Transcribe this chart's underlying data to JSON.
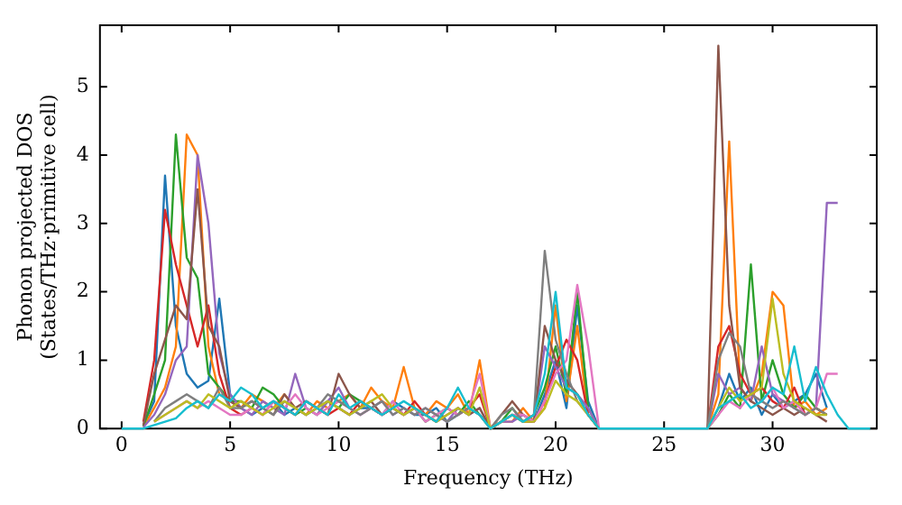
{
  "chart_data": {
    "type": "line",
    "xlabel": "Frequency (THz)",
    "ylabel": "Phonon projected DOS\n(States/THz·primitive cell)",
    "x": [
      0,
      0.5,
      1,
      1.5,
      2,
      2.5,
      3,
      3.5,
      4,
      4.5,
      5,
      5.5,
      6,
      6.5,
      7,
      7.5,
      8,
      8.5,
      9,
      9.5,
      10,
      10.5,
      11,
      11.5,
      12,
      12.5,
      13,
      13.5,
      14,
      14.5,
      15,
      15.5,
      16,
      16.5,
      17,
      17.5,
      18,
      18.5,
      19,
      19.5,
      20,
      20.5,
      21,
      21.5,
      22,
      22.5,
      23,
      23.5,
      24,
      24.5,
      25,
      25.5,
      26,
      26.5,
      27,
      27.5,
      28,
      28.5,
      29,
      29.5,
      30,
      30.5,
      31,
      31.5,
      32,
      32.5,
      33,
      33.5,
      34,
      34.5
    ],
    "series": [
      {
        "color": "#1f77b4",
        "values": [
          null,
          null,
          0.05,
          0.4,
          3.7,
          1.5,
          0.8,
          0.6,
          0.7,
          1.9,
          0.5,
          0.3,
          0.2,
          0.3,
          0.4,
          0.2,
          0.3,
          0.2,
          0.3,
          0.4,
          0.3,
          0.2,
          0.3,
          0.3,
          0.2,
          0.4,
          0.3,
          0.2,
          0.2,
          0.3,
          0.1,
          0.2,
          0.3,
          0.2,
          0,
          0.1,
          0.2,
          0.1,
          0.1,
          0.5,
          1.0,
          0.3,
          1.8,
          0.4,
          0,
          null,
          null,
          null,
          null,
          null,
          null,
          null,
          null,
          null,
          0,
          0.3,
          0.8,
          0.4,
          0.6,
          0.2,
          0.5,
          0.3,
          0.4,
          0.5,
          0.8,
          0.3,
          null,
          null,
          null,
          null
        ]
      },
      {
        "color": "#ff7f0e",
        "values": [
          null,
          null,
          0.02,
          0.3,
          0.6,
          1.2,
          4.3,
          4.0,
          1.2,
          0.5,
          0.4,
          0.3,
          0.5,
          0.4,
          0.3,
          0.5,
          0.3,
          0.2,
          0.4,
          0.3,
          0.4,
          0.5,
          0.3,
          0.6,
          0.4,
          0.3,
          0.9,
          0.3,
          0.2,
          0.4,
          0.3,
          0.5,
          0.2,
          1.0,
          0,
          0.1,
          0.1,
          0.3,
          0.1,
          0.3,
          1.8,
          0.4,
          1.5,
          0.2,
          0,
          null,
          null,
          null,
          null,
          null,
          null,
          null,
          null,
          null,
          0,
          0.5,
          4.2,
          0.6,
          0.4,
          0.8,
          2.0,
          1.8,
          0.3,
          0.4,
          0.2,
          0.3,
          null,
          null,
          null,
          null
        ]
      },
      {
        "color": "#2ca02c",
        "values": [
          null,
          null,
          0.03,
          0.5,
          1.0,
          4.3,
          2.5,
          2.2,
          0.8,
          0.6,
          0.4,
          0.4,
          0.3,
          0.6,
          0.5,
          0.3,
          0.2,
          0.3,
          0.2,
          0.4,
          0.3,
          0.5,
          0.4,
          0.3,
          0.2,
          0.3,
          0.2,
          0.3,
          0.1,
          0.2,
          0.3,
          0.2,
          0.4,
          0.2,
          0,
          0.1,
          0.3,
          0.1,
          0.2,
          0.6,
          1.2,
          0.5,
          2.0,
          0.3,
          0,
          null,
          null,
          null,
          null,
          null,
          null,
          null,
          null,
          null,
          0,
          0.2,
          0.5,
          0.3,
          2.4,
          0.4,
          1.0,
          0.5,
          0.3,
          0.5,
          0.3,
          0.2,
          null,
          null,
          null,
          null
        ]
      },
      {
        "color": "#d62728",
        "values": [
          null,
          null,
          0.1,
          1.0,
          3.2,
          2.4,
          1.8,
          1.2,
          1.8,
          0.8,
          0.3,
          0.2,
          0.3,
          0.2,
          0.4,
          0.3,
          0.2,
          0.4,
          0.3,
          0.2,
          0.3,
          0.2,
          0.4,
          0.3,
          0.2,
          0.3,
          0.2,
          0.4,
          0.2,
          0.1,
          0.3,
          0.2,
          0.3,
          0.5,
          0,
          0.1,
          0.2,
          0.1,
          0.1,
          0.4,
          0.9,
          1.3,
          1.0,
          0.2,
          0,
          null,
          null,
          null,
          null,
          null,
          null,
          null,
          null,
          null,
          0,
          1.2,
          1.5,
          0.8,
          0.5,
          0.6,
          0.4,
          0.3,
          0.6,
          0.2,
          0.3,
          0.2,
          null,
          null,
          null,
          null
        ]
      },
      {
        "color": "#9467bd",
        "values": [
          null,
          null,
          0.02,
          0.2,
          0.5,
          1.0,
          1.2,
          4.0,
          3.0,
          1.1,
          0.5,
          0.3,
          0.2,
          0.4,
          0.3,
          0.2,
          0.8,
          0.3,
          0.2,
          0.4,
          0.6,
          0.3,
          0.2,
          0.3,
          0.4,
          0.2,
          0.3,
          0.2,
          0.3,
          0.2,
          0.1,
          0.3,
          0.2,
          0.3,
          0,
          0.1,
          0.1,
          0.2,
          0.1,
          1.2,
          0.9,
          0.6,
          0.5,
          0.3,
          0,
          null,
          null,
          null,
          null,
          null,
          null,
          null,
          null,
          null,
          0,
          0.8,
          0.5,
          0.6,
          0.4,
          1.2,
          0.5,
          0.4,
          0.3,
          0.2,
          0.3,
          3.3,
          3.3,
          null,
          null,
          null
        ]
      },
      {
        "color": "#8c564b",
        "values": [
          null,
          null,
          0.05,
          0.8,
          1.3,
          1.8,
          1.6,
          3.5,
          1.5,
          1.2,
          0.4,
          0.3,
          0.4,
          0.3,
          0.2,
          0.5,
          0.3,
          0.4,
          0.3,
          0.2,
          0.8,
          0.5,
          0.3,
          0.4,
          0.2,
          0.3,
          0.2,
          0.3,
          0.2,
          0.1,
          0.2,
          0.3,
          0.2,
          0.3,
          0,
          0.2,
          0.4,
          0.2,
          0.1,
          1.5,
          1.0,
          0.7,
          0.5,
          0.2,
          0,
          null,
          null,
          null,
          null,
          null,
          null,
          null,
          null,
          null,
          0,
          5.6,
          1.8,
          0.6,
          0.4,
          0.3,
          0.2,
          0.3,
          0.2,
          0.3,
          0.2,
          0.1,
          null,
          null,
          null,
          null
        ]
      },
      {
        "color": "#e377c2",
        "values": [
          null,
          null,
          null,
          0.1,
          0.2,
          0.3,
          0.4,
          0.3,
          0.4,
          0.3,
          0.2,
          0.2,
          0.3,
          0.2,
          0.4,
          0.3,
          0.5,
          0.3,
          0.2,
          0.3,
          0.4,
          0.3,
          0.2,
          0.3,
          0.2,
          0.4,
          0.2,
          0.3,
          0.1,
          0.2,
          0.3,
          0.2,
          0.3,
          0.8,
          0,
          0.1,
          0.2,
          0.2,
          0.1,
          0.4,
          0.8,
          1.0,
          2.1,
          1.2,
          0,
          null,
          null,
          null,
          null,
          null,
          null,
          null,
          null,
          null,
          0,
          0.2,
          0.4,
          0.3,
          0.5,
          0.4,
          0.6,
          0.3,
          0.4,
          0.2,
          0.3,
          0.8,
          0.8,
          null,
          null,
          null
        ]
      },
      {
        "color": "#7f7f7f",
        "values": [
          null,
          null,
          null,
          0.1,
          0.3,
          0.4,
          0.5,
          0.4,
          0.3,
          0.6,
          0.3,
          0.3,
          0.4,
          0.3,
          0.2,
          0.4,
          0.3,
          0.2,
          0.3,
          0.5,
          0.4,
          0.3,
          0.2,
          0.3,
          0.4,
          0.2,
          0.3,
          0.2,
          0.3,
          0.2,
          0.1,
          0.2,
          0.3,
          0.2,
          0,
          0.2,
          0.3,
          0.1,
          0.2,
          2.6,
          1.3,
          0.8,
          0.4,
          0.2,
          0,
          null,
          null,
          null,
          null,
          null,
          null,
          null,
          null,
          null,
          0,
          1.0,
          1.4,
          1.2,
          0.5,
          0.4,
          0.3,
          0.4,
          0.3,
          0.2,
          0.3,
          0.2,
          null,
          null,
          null,
          null
        ]
      },
      {
        "color": "#bcbd22",
        "values": [
          null,
          null,
          null,
          0.1,
          0.2,
          0.3,
          0.4,
          0.3,
          0.5,
          0.4,
          0.3,
          0.4,
          0.3,
          0.2,
          0.3,
          0.4,
          0.3,
          0.2,
          0.3,
          0.4,
          0.3,
          0.2,
          0.3,
          0.4,
          0.5,
          0.3,
          0.2,
          0.3,
          0.2,
          0.1,
          0.2,
          0.3,
          0.2,
          0.6,
          0,
          0.1,
          0.2,
          0.1,
          0.1,
          0.3,
          0.7,
          0.5,
          0.4,
          0.2,
          0,
          null,
          null,
          null,
          null,
          null,
          null,
          null,
          null,
          null,
          0,
          0.3,
          0.6,
          0.4,
          0.5,
          0.6,
          1.9,
          0.8,
          0.4,
          0.3,
          0.2,
          0.2,
          null,
          null,
          null,
          null
        ]
      },
      {
        "color": "#17becf",
        "values": [
          0,
          0,
          0,
          0.05,
          0.1,
          0.15,
          0.3,
          0.4,
          0.3,
          0.5,
          0.4,
          0.6,
          0.5,
          0.3,
          0.4,
          0.3,
          0.2,
          0.4,
          0.3,
          0.2,
          0.5,
          0.3,
          0.4,
          0.3,
          0.2,
          0.3,
          0.4,
          0.3,
          0.2,
          0.1,
          0.3,
          0.6,
          0.3,
          0.2,
          0,
          0.1,
          0.2,
          0.1,
          0.2,
          0.8,
          2.0,
          0.6,
          0.5,
          0.2,
          0,
          0,
          0,
          0,
          0,
          0,
          0,
          0,
          0,
          0,
          0,
          0.3,
          0.4,
          0.5,
          0.3,
          0.4,
          0.6,
          0.5,
          1.2,
          0.4,
          0.9,
          0.5,
          0.2,
          0,
          0,
          0
        ]
      }
    ],
    "xlim": [
      -1,
      34.8
    ],
    "ylim": [
      0,
      5.9
    ],
    "xticks": [
      0,
      5,
      10,
      15,
      20,
      25,
      30
    ],
    "yticks": [
      0,
      1,
      2,
      3,
      4,
      5
    ],
    "grid": false,
    "legend": false,
    "marker": "none",
    "line_style": "solid"
  }
}
